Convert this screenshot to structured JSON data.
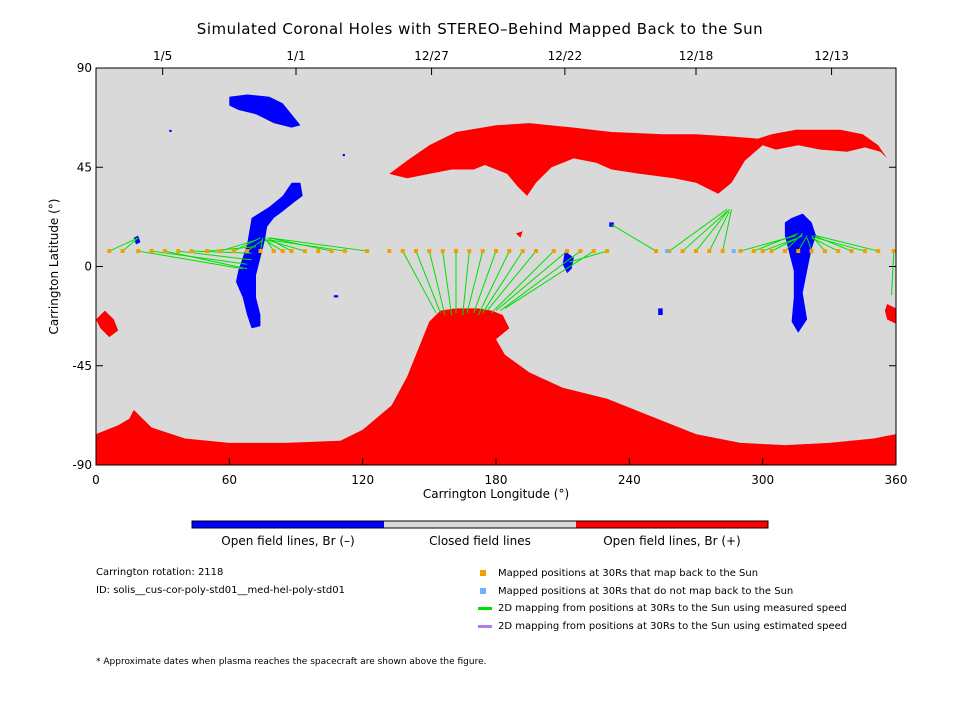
{
  "chart_data": {
    "type": "scatter",
    "title": "Simulated Coronal Holes with STEREO–Behind Mapped Back to the Sun",
    "xlabel": "Carrington Longitude (°)",
    "ylabel": "Carrington Latitude (°)",
    "xlim": [
      0,
      360
    ],
    "ylim": [
      -90,
      90
    ],
    "xticks": [
      0,
      60,
      120,
      180,
      240,
      300,
      360
    ],
    "yticks": [
      -90,
      -45,
      0,
      45,
      90
    ],
    "top_axis_dates": [
      {
        "lon": 30,
        "label": "1/5"
      },
      {
        "lon": 90,
        "label": "1/1"
      },
      {
        "lon": 151,
        "label": "12/27"
      },
      {
        "lon": 211,
        "label": "12/22"
      },
      {
        "lon": 270,
        "label": "12/18"
      },
      {
        "lon": 331,
        "label": "12/13"
      }
    ],
    "colors": {
      "background": "#d9d9d9",
      "open_negative": "#0000ff",
      "open_positive": "#ff0000",
      "mapped": "#f0a000",
      "not_mapped": "#6ab4ff",
      "measured": "#00e000",
      "estimated": "#b07cf0"
    },
    "mapped_positions_30rs": {
      "latitude": 7,
      "longitudes": [
        6,
        12,
        19,
        25,
        31,
        37,
        43,
        50,
        56,
        62,
        68,
        74,
        80,
        84,
        88,
        94,
        100,
        106,
        112,
        122,
        132,
        138,
        144,
        150,
        156,
        162,
        168,
        174,
        180,
        186,
        192,
        198,
        206,
        212,
        218,
        224,
        230,
        252,
        258,
        264,
        270,
        276,
        282,
        290,
        296,
        300,
        304,
        310,
        316,
        322,
        328,
        334,
        340,
        346,
        352,
        359
      ]
    },
    "unmapped_positions_30rs": {
      "latitude": 7,
      "longitudes": [
        257,
        287
      ]
    },
    "sun_footpoints": [
      {
        "from": 6,
        "to": [
          19,
          13
        ]
      },
      {
        "from": 12,
        "to": [
          19,
          13
        ]
      },
      {
        "from": 19,
        "to": [
          66,
          -1
        ]
      },
      {
        "from": 25,
        "to": [
          68,
          1
        ]
      },
      {
        "from": 31,
        "to": [
          68,
          -1
        ]
      },
      {
        "from": 37,
        "to": [
          70,
          3
        ]
      },
      {
        "from": 43,
        "to": [
          70,
          6
        ]
      },
      {
        "from": 50,
        "to": [
          72,
          9
        ]
      },
      {
        "from": 56,
        "to": [
          72,
          12
        ]
      },
      {
        "from": 62,
        "to": [
          74,
          13
        ]
      },
      {
        "from": 68,
        "to": [
          75,
          12
        ]
      },
      {
        "from": 74,
        "to": [
          75,
          13
        ]
      },
      {
        "from": 80,
        "to": [
          76,
          13
        ]
      },
      {
        "from": 84,
        "to": [
          76,
          12
        ]
      },
      {
        "from": 88,
        "to": [
          77,
          13
        ]
      },
      {
        "from": 94,
        "to": [
          77,
          12
        ]
      },
      {
        "from": 106,
        "to": [
          78,
          13
        ]
      },
      {
        "from": 112,
        "to": [
          78,
          12
        ]
      },
      {
        "from": 122,
        "to": [
          78,
          13
        ]
      },
      {
        "from": 138,
        "to": [
          153,
          -21
        ]
      },
      {
        "from": 144,
        "to": [
          155,
          -21
        ]
      },
      {
        "from": 150,
        "to": [
          157,
          -22
        ]
      },
      {
        "from": 156,
        "to": [
          160,
          -22
        ]
      },
      {
        "from": 162,
        "to": [
          162,
          -21
        ]
      },
      {
        "from": 168,
        "to": [
          165,
          -22
        ]
      },
      {
        "from": 174,
        "to": [
          167,
          -21
        ]
      },
      {
        "from": 180,
        "to": [
          170,
          -21
        ]
      },
      {
        "from": 186,
        "to": [
          172,
          -22
        ]
      },
      {
        "from": 192,
        "to": [
          174,
          -21
        ]
      },
      {
        "from": 198,
        "to": [
          176,
          -20
        ]
      },
      {
        "from": 206,
        "to": [
          178,
          -21
        ]
      },
      {
        "from": 212,
        "to": [
          180,
          -20
        ]
      },
      {
        "from": 218,
        "to": [
          182,
          -20
        ]
      },
      {
        "from": 224,
        "to": [
          184,
          -19
        ]
      },
      {
        "from": 230,
        "to": [
          213,
          2
        ]
      },
      {
        "from": 252,
        "to": [
          232,
          19
        ]
      },
      {
        "from": 258,
        "to": [
          284,
          26
        ]
      },
      {
        "from": 264,
        "to": [
          284,
          25
        ]
      },
      {
        "from": 270,
        "to": [
          285,
          26
        ]
      },
      {
        "from": 276,
        "to": [
          285,
          25
        ]
      },
      {
        "from": 282,
        "to": [
          286,
          26
        ]
      },
      {
        "from": 290,
        "to": [
          315,
          14
        ]
      },
      {
        "from": 296,
        "to": [
          316,
          15
        ]
      },
      {
        "from": 300,
        "to": [
          316,
          13
        ]
      },
      {
        "from": 304,
        "to": [
          318,
          14
        ]
      },
      {
        "from": 310,
        "to": [
          318,
          15
        ]
      },
      {
        "from": 316,
        "to": [
          320,
          14
        ]
      },
      {
        "from": 322,
        "to": [
          320,
          13
        ]
      },
      {
        "from": 328,
        "to": [
          322,
          14
        ]
      },
      {
        "from": 334,
        "to": [
          322,
          13
        ]
      },
      {
        "from": 340,
        "to": [
          323,
          14
        ]
      },
      {
        "from": 346,
        "to": [
          324,
          13
        ]
      },
      {
        "from": 352,
        "to": [
          324,
          14
        ]
      },
      {
        "from": 359,
        "to": [
          358,
          -13
        ]
      }
    ],
    "coronal_holes": [
      {
        "polarity": "positive",
        "points": [
          [
            0,
            -76
          ],
          [
            10,
            -72
          ],
          [
            15,
            -69
          ],
          [
            17,
            -65
          ],
          [
            20,
            -68
          ],
          [
            25,
            -73
          ],
          [
            40,
            -78
          ],
          [
            60,
            -80
          ],
          [
            85,
            -80
          ],
          [
            110,
            -79
          ],
          [
            120,
            -74
          ],
          [
            133,
            -63
          ],
          [
            140,
            -50
          ],
          [
            146,
            -35
          ],
          [
            150,
            -25
          ],
          [
            155,
            -20
          ],
          [
            162,
            -19
          ],
          [
            172,
            -19
          ],
          [
            178,
            -20
          ],
          [
            183,
            -22
          ],
          [
            186,
            -28
          ],
          [
            180,
            -33
          ],
          [
            184,
            -40
          ],
          [
            195,
            -48
          ],
          [
            210,
            -55
          ],
          [
            230,
            -60
          ],
          [
            250,
            -68
          ],
          [
            270,
            -76
          ],
          [
            290,
            -80
          ],
          [
            310,
            -81
          ],
          [
            330,
            -80
          ],
          [
            350,
            -78
          ],
          [
            360,
            -76
          ],
          [
            360,
            -90
          ],
          [
            0,
            -90
          ]
        ]
      },
      {
        "polarity": "positive",
        "points": [
          [
            132,
            42
          ],
          [
            140,
            48
          ],
          [
            150,
            55
          ],
          [
            162,
            61
          ],
          [
            180,
            64
          ],
          [
            195,
            65
          ],
          [
            215,
            63
          ],
          [
            232,
            61
          ],
          [
            255,
            60
          ],
          [
            270,
            60
          ],
          [
            285,
            59
          ],
          [
            298,
            58
          ],
          [
            304,
            60
          ],
          [
            300,
            55
          ],
          [
            292,
            48
          ],
          [
            286,
            38
          ],
          [
            280,
            33
          ],
          [
            270,
            38
          ],
          [
            260,
            40
          ],
          [
            245,
            42
          ],
          [
            232,
            44
          ],
          [
            225,
            47
          ],
          [
            215,
            49
          ],
          [
            205,
            45
          ],
          [
            198,
            38
          ],
          [
            194,
            32
          ],
          [
            190,
            36
          ],
          [
            185,
            42
          ],
          [
            175,
            46
          ],
          [
            170,
            44
          ],
          [
            160,
            44
          ],
          [
            150,
            42
          ],
          [
            140,
            40
          ]
        ]
      },
      {
        "polarity": "positive",
        "points": [
          [
            304,
            60
          ],
          [
            315,
            62
          ],
          [
            325,
            62
          ],
          [
            335,
            62
          ],
          [
            345,
            60
          ],
          [
            352,
            55
          ],
          [
            356,
            49
          ],
          [
            353,
            52
          ],
          [
            346,
            54
          ],
          [
            338,
            52
          ],
          [
            326,
            53
          ],
          [
            316,
            55
          ],
          [
            306,
            53
          ],
          [
            300,
            55
          ]
        ]
      },
      {
        "polarity": "positive",
        "points": [
          [
            0,
            -24
          ],
          [
            4,
            -20
          ],
          [
            8,
            -24
          ],
          [
            10,
            -29
          ],
          [
            6,
            -32
          ],
          [
            2,
            -28
          ]
        ]
      },
      {
        "polarity": "positive",
        "points": [
          [
            356,
            -17
          ],
          [
            360,
            -19
          ],
          [
            360,
            -26
          ],
          [
            356,
            -24
          ],
          [
            355,
            -20
          ]
        ]
      },
      {
        "polarity": "positive",
        "points": [
          [
            189,
            15
          ],
          [
            191,
            13
          ],
          [
            192,
            16
          ]
        ]
      },
      {
        "polarity": "negative",
        "points": [
          [
            60,
            77
          ],
          [
            68,
            78
          ],
          [
            78,
            77
          ],
          [
            84,
            74
          ],
          [
            88,
            69
          ],
          [
            92,
            64
          ],
          [
            88,
            63
          ],
          [
            80,
            65
          ],
          [
            72,
            69
          ],
          [
            64,
            71
          ],
          [
            60,
            73
          ]
        ]
      },
      {
        "polarity": "negative",
        "points": [
          [
            70,
            22
          ],
          [
            78,
            27
          ],
          [
            84,
            32
          ],
          [
            88,
            38
          ],
          [
            92,
            38
          ],
          [
            93,
            32
          ],
          [
            89,
            29
          ],
          [
            84,
            25
          ],
          [
            80,
            22
          ],
          [
            77,
            18
          ],
          [
            76,
            12
          ],
          [
            74,
            4
          ],
          [
            72,
            -4
          ],
          [
            72,
            -14
          ],
          [
            74,
            -22
          ],
          [
            74,
            -27
          ],
          [
            70,
            -28
          ],
          [
            68,
            -22
          ],
          [
            66,
            -14
          ],
          [
            63,
            -7
          ],
          [
            64,
            -2
          ],
          [
            66,
            4
          ],
          [
            68,
            10
          ],
          [
            69,
            16
          ]
        ]
      },
      {
        "polarity": "negative",
        "points": [
          [
            313,
            22
          ],
          [
            318,
            24
          ],
          [
            322,
            20
          ],
          [
            324,
            14
          ],
          [
            322,
            8
          ],
          [
            320,
            -2
          ],
          [
            318,
            -12
          ],
          [
            320,
            -24
          ],
          [
            316,
            -30
          ],
          [
            313,
            -25
          ],
          [
            314,
            -14
          ],
          [
            314,
            -2
          ],
          [
            312,
            6
          ],
          [
            310,
            14
          ],
          [
            310,
            20
          ]
        ]
      },
      {
        "polarity": "negative",
        "points": [
          [
            17,
            13
          ],
          [
            19,
            14
          ],
          [
            20,
            11
          ],
          [
            18,
            10
          ]
        ]
      },
      {
        "polarity": "negative",
        "points": [
          [
            211,
            7
          ],
          [
            215,
            4
          ],
          [
            214,
            -1
          ],
          [
            212,
            -3
          ],
          [
            210,
            1
          ]
        ]
      },
      {
        "polarity": "negative",
        "points": [
          [
            231,
            20
          ],
          [
            233,
            20
          ],
          [
            233,
            18
          ],
          [
            231,
            18
          ]
        ]
      },
      {
        "polarity": "negative",
        "points": [
          [
            253,
            -19
          ],
          [
            255,
            -19
          ],
          [
            255,
            -22
          ],
          [
            253,
            -22
          ]
        ]
      },
      {
        "polarity": "negative",
        "points": [
          [
            107,
            -13
          ],
          [
            109,
            -13
          ],
          [
            109,
            -14
          ],
          [
            107,
            -14
          ]
        ]
      },
      {
        "polarity": "negative",
        "points": [
          [
            111,
            51
          ],
          [
            112,
            51
          ],
          [
            112,
            50
          ],
          [
            111,
            50
          ]
        ]
      },
      {
        "polarity": "negative",
        "points": [
          [
            33,
            62
          ],
          [
            34,
            62
          ],
          [
            34,
            61
          ],
          [
            33,
            61
          ]
        ]
      }
    ]
  },
  "colorbar": {
    "labels": [
      "Open field lines, Br (–)",
      "Closed field lines",
      "Open field lines, Br (+)"
    ]
  },
  "info": {
    "rotation": "Carrington rotation: 2118",
    "id": "ID: solis__cus-cor-poly-std01__med-hel-poly-std01"
  },
  "legend": {
    "mapped": "Mapped positions at 30Rs that map back to the Sun",
    "not_mapped": "Mapped positions at 30Rs that do not map back to the Sun",
    "measured": "2D mapping from positions at 30Rs to the Sun using measured speed",
    "estimated": "2D mapping from positions at 30Rs to the Sun using estimated speed"
  },
  "footnote": "* Approximate dates when plasma reaches the spacecraft are shown above the figure."
}
